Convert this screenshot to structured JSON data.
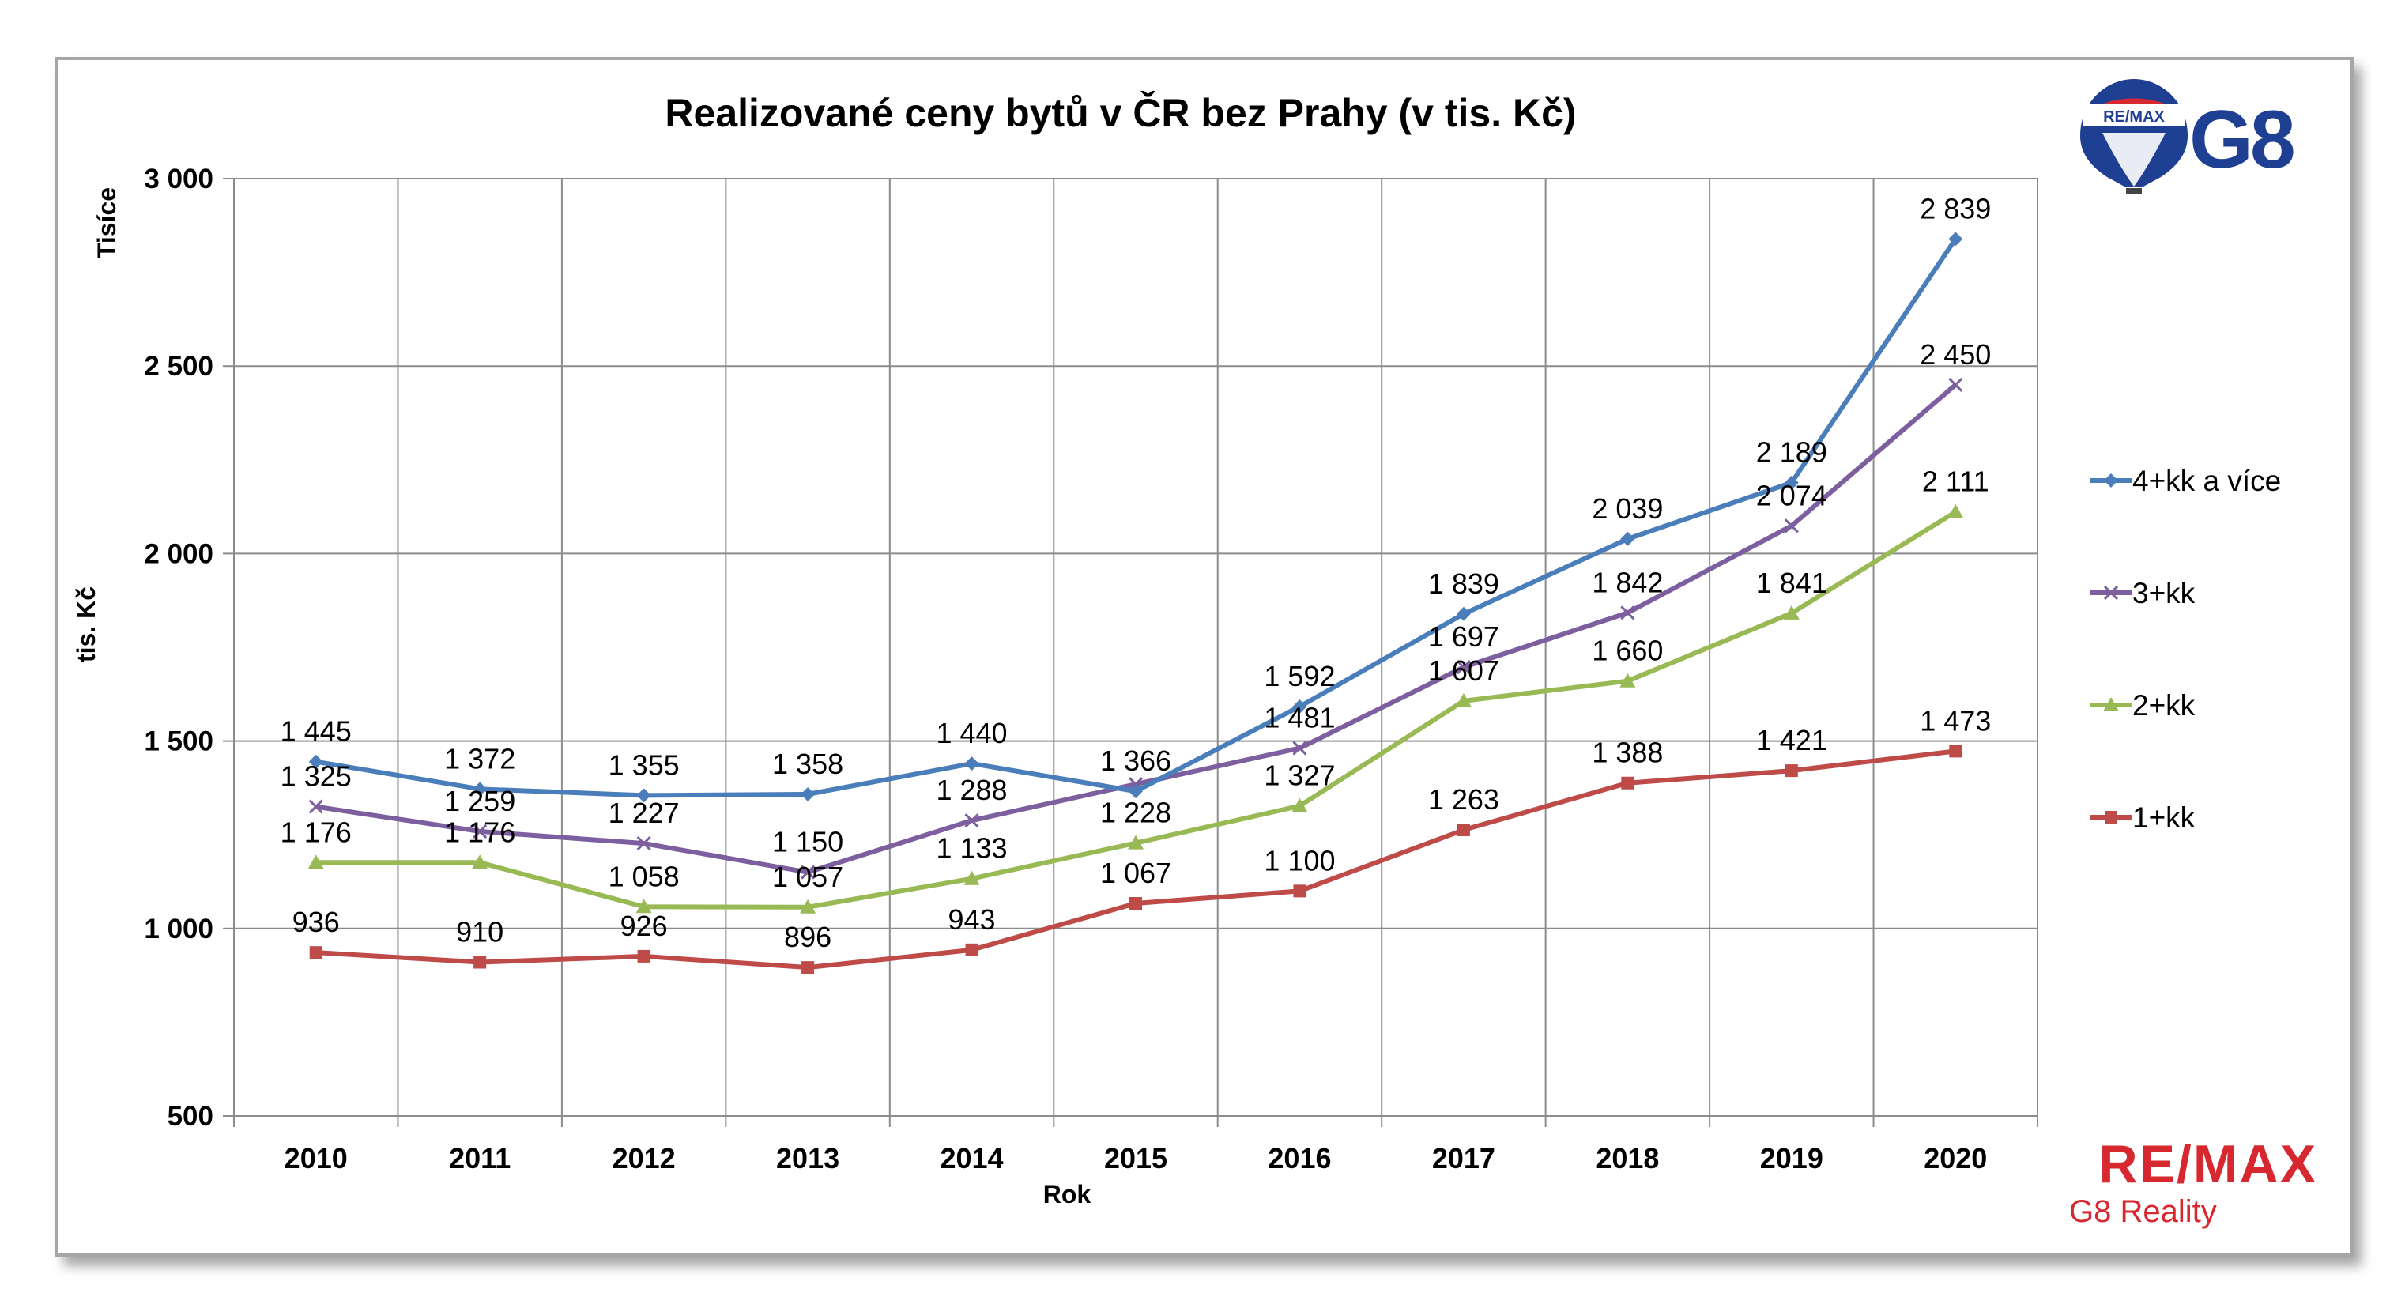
{
  "chart_data": {
    "type": "line",
    "title": "Realizované ceny bytů v ČR bez Prahy (v tis. Kč)",
    "xlabel": "Rok",
    "ylabel": "tis. Kč",
    "yunit_label": "Tisíce",
    "ylim": [
      500,
      3000
    ],
    "yticks": [
      500,
      1000,
      1500,
      2000,
      2500,
      3000
    ],
    "ytick_labels": [
      "500",
      "1 000",
      "1 500",
      "2 000",
      "2 500",
      "3 000"
    ],
    "grid": true,
    "legend_position": "right",
    "categories": [
      "2010",
      "2011",
      "2012",
      "2013",
      "2014",
      "2015",
      "2016",
      "2017",
      "2018",
      "2019",
      "2020"
    ],
    "series": [
      {
        "name": "4+kk a více",
        "color": "#4a7ebb",
        "marker": "diamond",
        "values": [
          1445,
          1372,
          1355,
          1358,
          1440,
          1366,
          1592,
          1839,
          2039,
          2189,
          2839
        ],
        "labels": [
          "1 445",
          "1 372",
          "1 355",
          "1 358",
          "1 440",
          "1 366",
          "1 592",
          "1 839",
          "2 039",
          "2 189",
          "2 839"
        ]
      },
      {
        "name": "3+kk",
        "color": "#7d5fa0",
        "marker": "x",
        "values": [
          1325,
          1259,
          1227,
          1150,
          1288,
          1385,
          1481,
          1697,
          1842,
          2074,
          2450
        ],
        "labels": [
          "1 325",
          "1 259",
          "1 227",
          "1 150",
          "1 288",
          "",
          "1 481",
          "1 697",
          "1 842",
          "2 074",
          "2 450"
        ]
      },
      {
        "name": "2+kk",
        "color": "#98b954",
        "marker": "triangle",
        "values": [
          1176,
          1176,
          1058,
          1057,
          1133,
          1228,
          1327,
          1607,
          1660,
          1841,
          2111
        ],
        "labels": [
          "1 176",
          "1 176",
          "1 058",
          "1 057",
          "1 133",
          "1 228",
          "1 327",
          "1 607",
          "1 660",
          "1 841",
          "2 111"
        ]
      },
      {
        "name": "1+kk",
        "color": "#be4b48",
        "marker": "square",
        "values": [
          936,
          910,
          926,
          896,
          943,
          1067,
          1100,
          1263,
          1388,
          1421,
          1473
        ],
        "labels": [
          "936",
          "910",
          "926",
          "896",
          "943",
          "1 067",
          "1 100",
          "1 263",
          "1 388",
          "1 421",
          "1 473"
        ]
      }
    ]
  },
  "branding": {
    "logo_top": "G8",
    "balloon_text": "RE/MAX",
    "logo_bottom_main": "RE/MAX",
    "logo_bottom_sub": "G8 Reality",
    "colors": {
      "red": "#d7282f",
      "blue": "#1f3f93"
    }
  }
}
